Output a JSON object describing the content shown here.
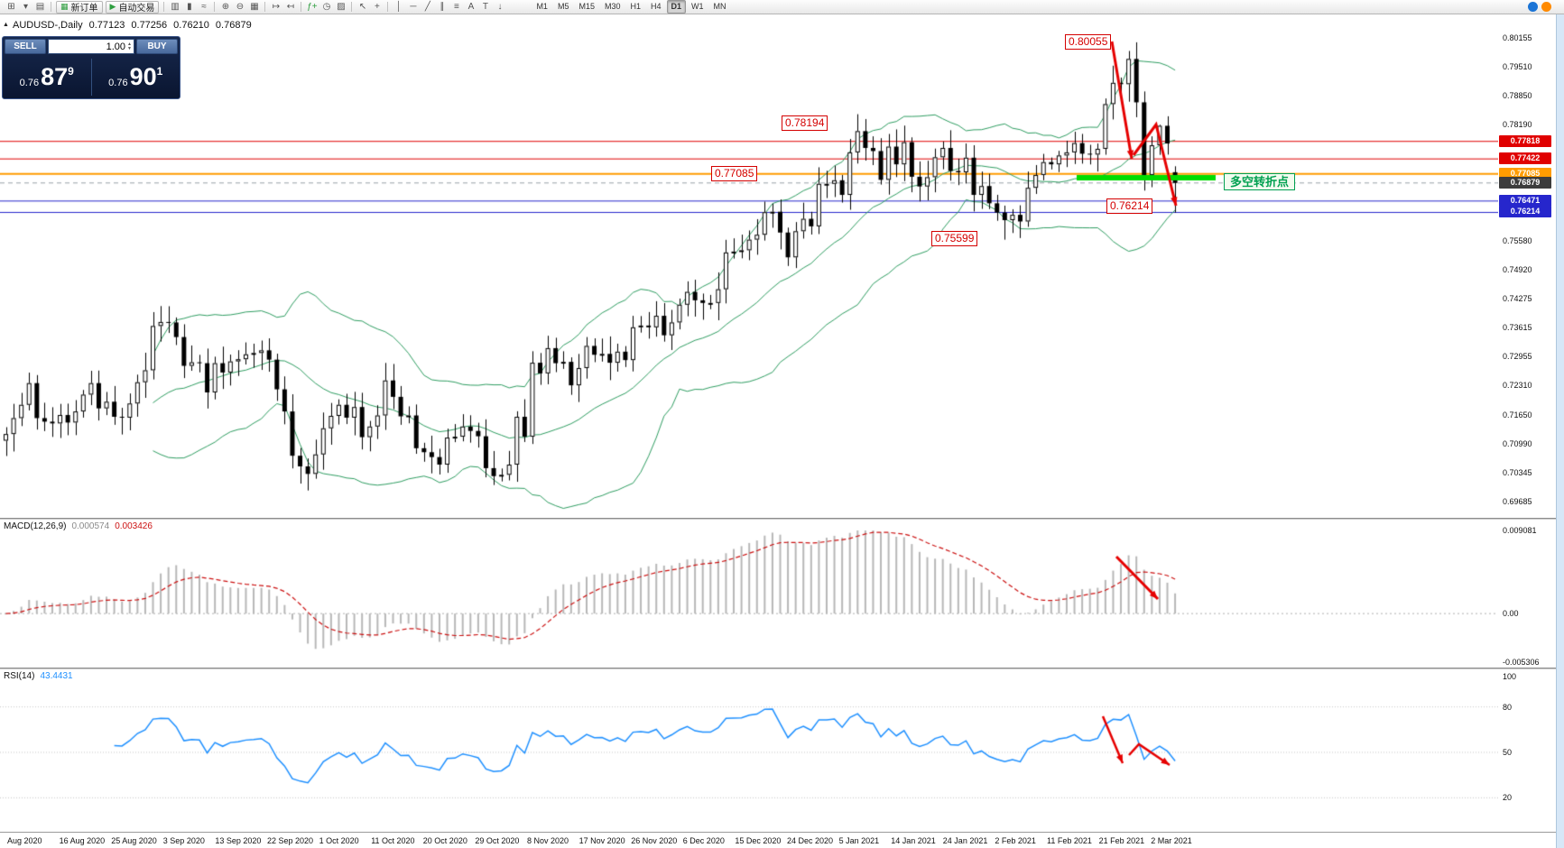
{
  "toolbar": {
    "groups": [
      {
        "items": [
          {
            "name": "new-chart-icon",
            "glyph": "⊞"
          },
          {
            "name": "chart-dropdown-icon",
            "glyph": "▾"
          },
          {
            "name": "profiles-icon",
            "glyph": "▤"
          }
        ]
      },
      {
        "items": [
          {
            "name": "new-order-button",
            "glyph": "▦",
            "label": "新订单"
          },
          {
            "name": "autotrade-button",
            "glyph": "▶",
            "label": "自动交易"
          }
        ]
      },
      {
        "items": [
          {
            "name": "bar-chart-icon",
            "glyph": "▥"
          },
          {
            "name": "candlestick-chart-icon",
            "glyph": "▮"
          },
          {
            "name": "line-chart-icon",
            "glyph": "≈"
          }
        ]
      },
      {
        "items": [
          {
            "name": "zoom-in-icon",
            "glyph": "⊕"
          },
          {
            "name": "zoom-out-icon",
            "glyph": "⊖"
          },
          {
            "name": "tile-windows-icon",
            "glyph": "▦"
          }
        ]
      },
      {
        "items": [
          {
            "name": "auto-scroll-icon",
            "glyph": "↦"
          },
          {
            "name": "chart-shift-icon",
            "glyph": "↤"
          }
        ]
      },
      {
        "items": [
          {
            "name": "indicators-icon",
            "glyph": "ƒ+",
            "glyph_color": "#2e9e3f"
          },
          {
            "name": "periods-icon",
            "glyph": "◷"
          },
          {
            "name": "templates-icon",
            "glyph": "▨"
          }
        ]
      },
      {
        "items": [
          {
            "name": "cursor-icon",
            "glyph": "↖"
          },
          {
            "name": "crosshair-icon",
            "glyph": "+"
          }
        ]
      },
      {
        "items": [
          {
            "name": "vertical-line-icon",
            "glyph": "│"
          },
          {
            "name": "horizontal-line-icon",
            "glyph": "─"
          },
          {
            "name": "trendline-icon",
            "glyph": "╱"
          },
          {
            "name": "equidistant-channel-icon",
            "glyph": "∥"
          },
          {
            "name": "fibonacci-icon",
            "glyph": "≡"
          },
          {
            "name": "text-icon",
            "glyph": "A"
          },
          {
            "name": "label-icon",
            "glyph": "T"
          },
          {
            "name": "arrows-icon",
            "glyph": "↓"
          }
        ]
      }
    ],
    "timeframes": [
      "M1",
      "M5",
      "M15",
      "M30",
      "H1",
      "H4",
      "D1",
      "W1",
      "MN"
    ],
    "active_timeframe": "D1",
    "right_icons": [
      {
        "name": "help-icon",
        "color": "#1b74d6"
      },
      {
        "name": "notifications-icon",
        "color": "#ff8a00"
      }
    ]
  },
  "chart": {
    "collapse_icon": "▲",
    "symbol_line": {
      "symbol": "AUDUSD-,Daily",
      "open": "0.77123",
      "high": "0.77256",
      "low": "0.76210",
      "close": "0.76879"
    },
    "trade_panel": {
      "sell_label": "SELL",
      "buy_label": "BUY",
      "volume": "1.00",
      "sell_price": {
        "base": "0.76",
        "big": "87",
        "sup": "9"
      },
      "buy_price": {
        "base": "0.76",
        "big": "90",
        "sup": "1"
      }
    },
    "callouts": [
      {
        "text": "0.80055"
      },
      {
        "text": "0.78194"
      },
      {
        "text": "0.77085"
      },
      {
        "text": "0.76214"
      },
      {
        "text": "0.75599"
      }
    ],
    "note": {
      "text": "多空转折点",
      "color": "#00a050"
    },
    "axis": {
      "ticks": [
        "0.80155",
        "0.79510",
        "0.78850",
        "0.78190",
        "0.75580",
        "0.74920",
        "0.74275",
        "0.73615",
        "0.72955",
        "0.72310",
        "0.71650",
        "0.70990",
        "0.70345",
        "0.69685"
      ],
      "line_labels": [
        {
          "text": "0.77818",
          "price": 0.77818,
          "color": "#e00000"
        },
        {
          "text": "0.77422",
          "price": 0.77422,
          "color": "#e00000"
        },
        {
          "text": "0.77085",
          "price": 0.77085,
          "color": "#ff9c00"
        },
        {
          "text": "0.76879",
          "price": 0.76879,
          "color": "#3c3c3c"
        },
        {
          "text": "0.76471",
          "price": 0.76471,
          "color": "#2626cc"
        },
        {
          "text": "0.76214",
          "price": 0.76214,
          "color": "#2626cc"
        }
      ]
    },
    "hlines": [
      {
        "price": 0.77818,
        "color": "#e00000",
        "width": 1,
        "style": "solid"
      },
      {
        "price": 0.77422,
        "color": "#e00000",
        "width": 1,
        "style": "solid"
      },
      {
        "price": 0.77085,
        "color": "#ff9c00",
        "width": 2,
        "style": "solid"
      },
      {
        "price": 0.76471,
        "color": "#2626cc",
        "width": 1,
        "style": "solid"
      },
      {
        "price": 0.76214,
        "color": "#2626cc",
        "width": 1,
        "style": "solid"
      },
      {
        "price": 0.76879,
        "color": "#98a0a8",
        "width": 1,
        "style": "dashed"
      }
    ]
  },
  "chart_data": {
    "type": "candlestick",
    "symbol": "AUDUSD",
    "timeframe": "Daily",
    "start_date": "2020-08-03",
    "frequency": "weekdays",
    "ylim": [
      0.69685,
      0.80155
    ],
    "closes": [
      0.7121,
      0.7157,
      0.7187,
      0.7236,
      0.7157,
      0.7149,
      0.7145,
      0.7164,
      0.7147,
      0.7172,
      0.721,
      0.7236,
      0.7179,
      0.7194,
      0.716,
      0.7158,
      0.719,
      0.7238,
      0.7265,
      0.7365,
      0.7374,
      0.7373,
      0.734,
      0.7275,
      0.7283,
      0.7281,
      0.7215,
      0.7281,
      0.726,
      0.7285,
      0.729,
      0.7301,
      0.7304,
      0.731,
      0.7289,
      0.7222,
      0.7172,
      0.7072,
      0.7048,
      0.7031,
      0.7075,
      0.7134,
      0.7162,
      0.7187,
      0.7158,
      0.7182,
      0.7114,
      0.7138,
      0.7163,
      0.7242,
      0.7205,
      0.7161,
      0.7163,
      0.7089,
      0.708,
      0.7069,
      0.7052,
      0.7113,
      0.7115,
      0.7138,
      0.7128,
      0.7116,
      0.7044,
      0.7026,
      0.7029,
      0.7052,
      0.716,
      0.7115,
      0.7282,
      0.7258,
      0.7315,
      0.7281,
      0.7284,
      0.7231,
      0.727,
      0.732,
      0.73,
      0.7302,
      0.7282,
      0.7307,
      0.7288,
      0.7362,
      0.7366,
      0.7362,
      0.7388,
      0.7344,
      0.7373,
      0.7413,
      0.7442,
      0.7423,
      0.7417,
      0.7417,
      0.7448,
      0.7531,
      0.7533,
      0.7536,
      0.756,
      0.7571,
      0.7622,
      0.7623,
      0.7576,
      0.752,
      0.7579,
      0.7607,
      0.759,
      0.7686,
      0.7686,
      0.7694,
      0.7661,
      0.7757,
      0.7805,
      0.7767,
      0.776,
      0.7695,
      0.777,
      0.773,
      0.778,
      0.7702,
      0.768,
      0.7701,
      0.7746,
      0.7767,
      0.7715,
      0.7712,
      0.7745,
      0.7661,
      0.7681,
      0.7642,
      0.7621,
      0.7604,
      0.7616,
      0.7601,
      0.7677,
      0.7706,
      0.7735,
      0.773,
      0.775,
      0.7757,
      0.7778,
      0.7754,
      0.7752,
      0.7765,
      0.7866,
      0.7914,
      0.7911,
      0.7968,
      0.787,
      0.7706,
      0.7773,
      0.7817,
      0.7777,
      0.76879
    ],
    "overrides": {
      "highs": {
        "145": 0.7986,
        "146": 0.80055,
        "149": 0.78194
      },
      "lows": {
        "129": 0.75599
      }
    },
    "last_candle": {
      "open": 0.77123,
      "high": 0.77256,
      "low": 0.7621,
      "close": 0.76879
    },
    "indicators": {
      "bollinger_bands": {
        "period": 20,
        "deviation": 2,
        "color": "#2f9e62"
      },
      "macd": {
        "fast": 12,
        "slow": 26,
        "signal": 9,
        "values": [
          0.000574,
          0.003426
        ],
        "range": [
          -0.005306,
          0.009081
        ],
        "histogram_color": "#b8b8b8",
        "signal_color": "#cc1111"
      },
      "rsi": {
        "period": 14,
        "value": 43.4431,
        "range": [
          0,
          100
        ],
        "levels": [
          80,
          50,
          20
        ],
        "color": "#1e90ff"
      }
    }
  },
  "macd_panel": {
    "label": "MACD(12,26,9)",
    "value_main": "0.000574",
    "value_signal": "0.003426",
    "axis_labels": [
      "0.009081",
      "0.00",
      "-0.005306"
    ]
  },
  "rsi_panel": {
    "label": "RSI(14)",
    "value": "43.4431",
    "axis_labels": [
      "100",
      "80",
      "50",
      "20"
    ]
  },
  "date_axis": {
    "labels": [
      "Aug 2020",
      "16 Aug 2020",
      "25 Aug 2020",
      "3 Sep 2020",
      "13 Sep 2020",
      "22 Sep 2020",
      "1 Oct 2020",
      "11 Oct 2020",
      "20 Oct 2020",
      "29 Oct 2020",
      "8 Nov 2020",
      "17 Nov 2020",
      "26 Nov 2020",
      "6 Dec 2020",
      "15 Dec 2020",
      "24 Dec 2020",
      "5 Jan 2021",
      "14 Jan 2021",
      "24 Jan 2021",
      "2 Feb 2021",
      "11 Feb 2021",
      "21 Feb 2021",
      "2 Mar 2021"
    ]
  }
}
